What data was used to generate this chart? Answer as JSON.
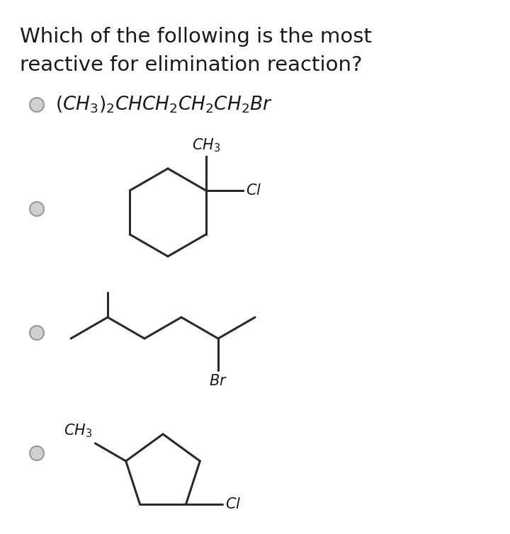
{
  "bg_color": "#ffffff",
  "text_color": "#1a1a1a",
  "struct_color": "#2a2a2a",
  "title_line1": "Which of the following is the most",
  "title_line2": "reactive for elimination reaction?",
  "title_fontsize": 21,
  "formula_fontsize": 19,
  "chem_fontsize": 15,
  "radio_fill": "#d0d0d0",
  "radio_edge": "#999999"
}
